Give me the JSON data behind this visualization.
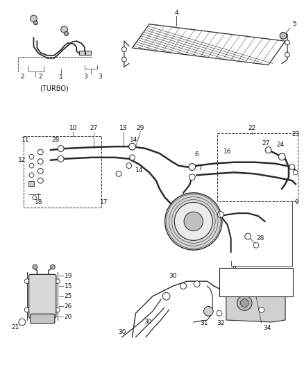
{
  "bg_color": "#ffffff",
  "line_color": "#2a2a2a",
  "label_color": "#111111",
  "fig_width": 4.38,
  "fig_height": 5.33,
  "dpi": 100
}
